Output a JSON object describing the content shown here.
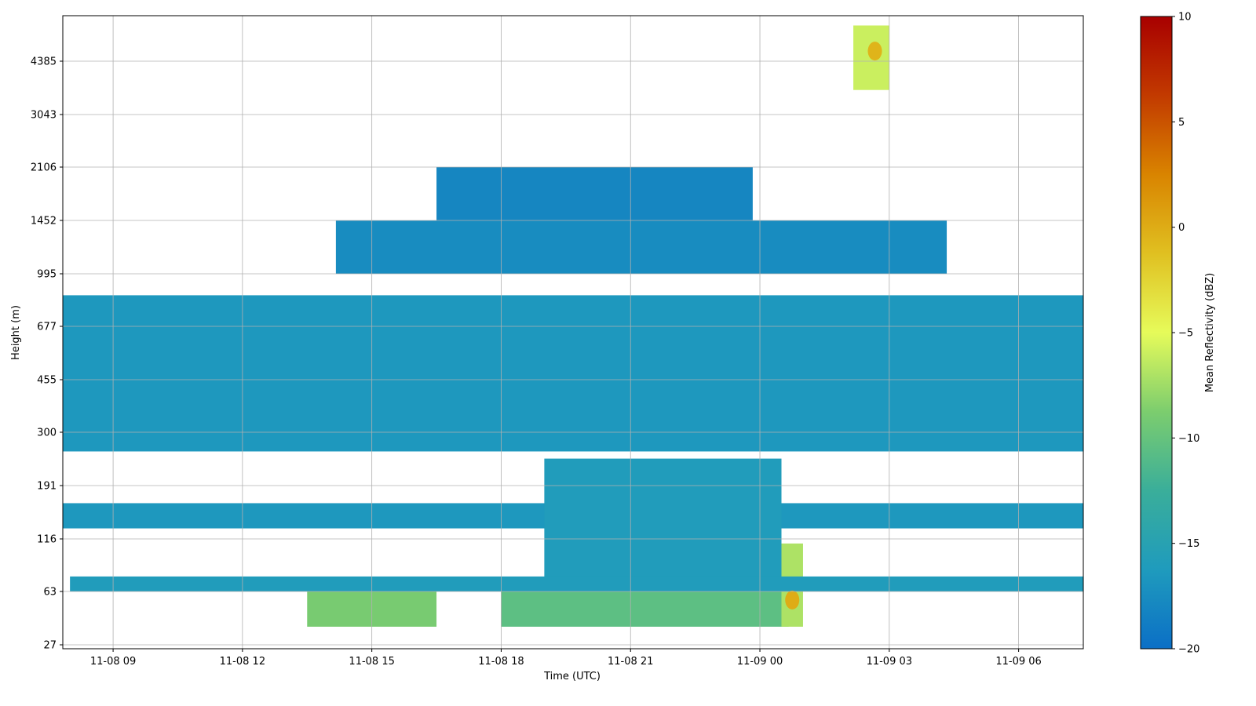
{
  "chart_data": {
    "type": "heatmap",
    "title": "",
    "xlabel": "Time (UTC)",
    "ylabel": "Height (m)",
    "grid": true,
    "x_ticks": [
      "11-08 09",
      "11-08 12",
      "11-08 15",
      "11-08 18",
      "11-08 21",
      "11-09 00",
      "11-09 03",
      "11-09 06"
    ],
    "y_ticks": [
      "27",
      "63",
      "116",
      "191",
      "300",
      "455",
      "677",
      "995",
      "1452",
      "2106",
      "3043",
      "4385"
    ],
    "y_scale": "nonlinear (labelled levels)",
    "colorbar": {
      "label": "Mean Reflectivity (dBZ)",
      "min": -20,
      "max": 10,
      "ticks": [
        -20,
        -15,
        -10,
        -5,
        0,
        5,
        10
      ],
      "colors": [
        "#0b6fc6",
        "#1f9bbd",
        "#3aae9a",
        "#7ccd6e",
        "#e6fb5a",
        "#e0c021",
        "#d98400",
        "#c23a00",
        "#a80000"
      ]
    },
    "time_range": [
      "11-08 07:50",
      "11-09 07:30"
    ],
    "layers": [
      {
        "time_start": "11-08 07:50",
        "time_end": "11-09 07:30",
        "height_bottom": 255,
        "height_top": 850,
        "mean_dbz": -16.5
      },
      {
        "time_start": "11-08 07:50",
        "time_end": "11-09 07:30",
        "height_bottom": 128,
        "height_top": 162,
        "mean_dbz": -16.5
      },
      {
        "time_start": "11-08 14:10",
        "time_end": "11-09 00:30",
        "height_bottom": 995,
        "height_top": 1452,
        "mean_dbz": -17.5
      },
      {
        "time_start": "11-08 16:30",
        "time_end": "11-08 23:50",
        "height_bottom": 1452,
        "height_top": 2106,
        "mean_dbz": -18
      },
      {
        "time_start": "11-09 00:30",
        "time_end": "11-09 04:20",
        "height_bottom": 995,
        "height_top": 1452,
        "mean_dbz": -17.5
      },
      {
        "time_start": "11-08 19:00",
        "time_end": "11-09 00:30",
        "height_bottom": 63,
        "height_top": 240,
        "mean_dbz": -16
      },
      {
        "time_start": "11-08 18:00",
        "time_end": "11-09 00:40",
        "height_bottom": 36,
        "height_top": 63,
        "mean_dbz": -10.5
      },
      {
        "time_start": "11-08 13:30",
        "time_end": "11-08 16:30",
        "height_bottom": 36,
        "height_top": 70,
        "mean_dbz": -9
      },
      {
        "time_start": "11-09 00:30",
        "time_end": "11-09 01:00",
        "height_bottom": 36,
        "height_top": 110,
        "mean_dbz": -7
      },
      {
        "time_start": "11-09 02:10",
        "time_end": "11-09 03:00",
        "height_bottom": 3600,
        "height_top": 5600,
        "mean_dbz": -6
      },
      {
        "time_start": "11-08 08:00",
        "time_end": "11-09 07:30",
        "height_bottom": 63,
        "height_top": 75,
        "mean_dbz": -16
      }
    ],
    "peaks": [
      {
        "time": "11-09 00:45",
        "height": 55,
        "dbz": 0
      },
      {
        "time": "11-09 02:40",
        "height": 4700,
        "dbz": -0.5
      }
    ]
  }
}
